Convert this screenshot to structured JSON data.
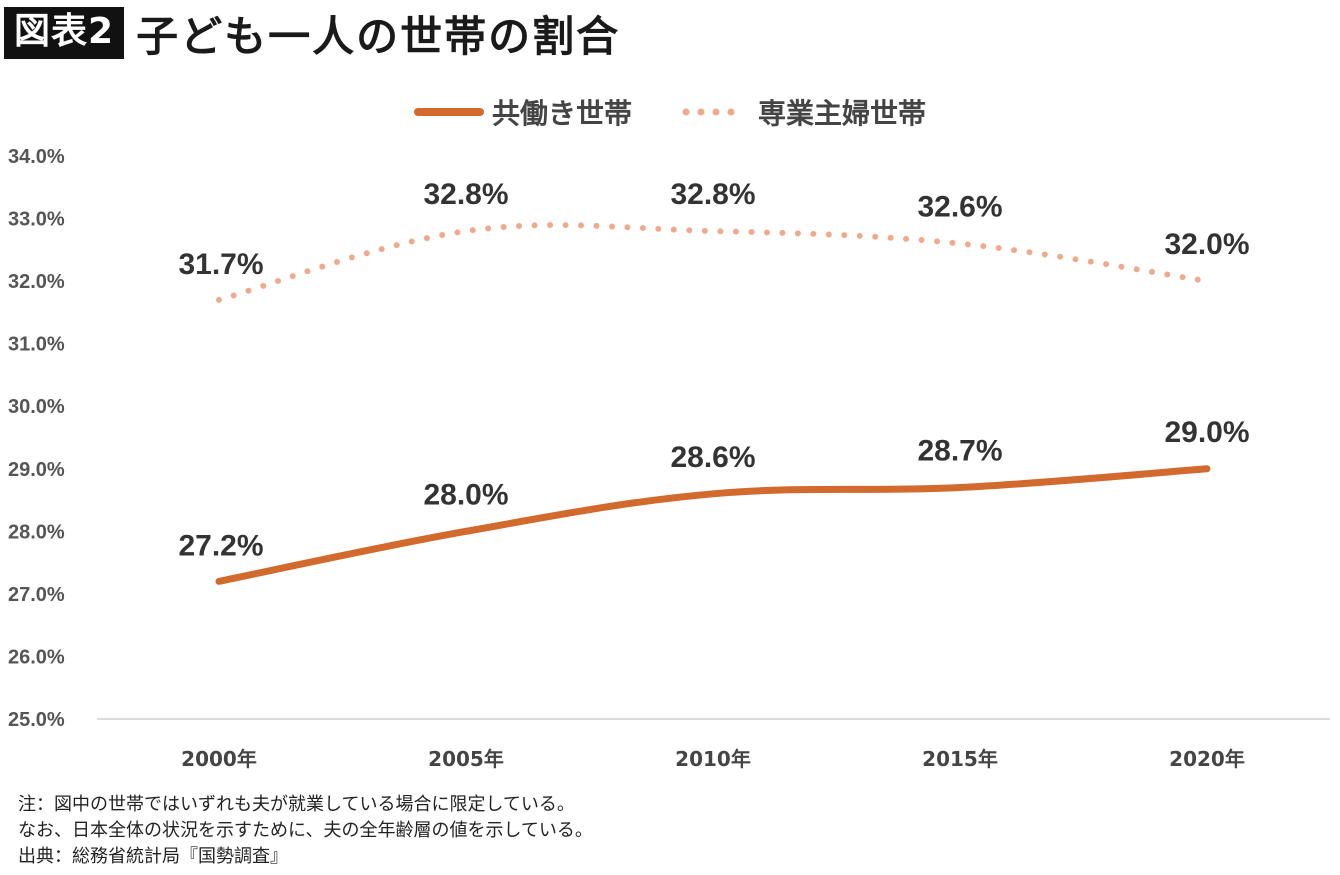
{
  "header": {
    "badge": "図表2",
    "title": "子ども一人の世帯の割合"
  },
  "legend": {
    "items": [
      {
        "label": "共働き世帯",
        "style": "solid",
        "color": "#D2692D"
      },
      {
        "label": "専業主婦世帯",
        "style": "dotted",
        "color": "#EFA98C"
      }
    ]
  },
  "chart_data": {
    "type": "line",
    "categories": [
      "2000年",
      "2005年",
      "2010年",
      "2015年",
      "2020年"
    ],
    "series": [
      {
        "name": "共働き世帯",
        "values": [
          27.2,
          28.0,
          28.6,
          28.7,
          29.0
        ],
        "labels": [
          "27.2%",
          "28.0%",
          "28.6%",
          "28.7%",
          "29.0%"
        ],
        "color": "#D2692D",
        "style": "solid"
      },
      {
        "name": "専業主婦世帯",
        "values": [
          31.7,
          32.8,
          32.8,
          32.6,
          32.0
        ],
        "labels": [
          "31.7%",
          "32.8%",
          "32.8%",
          "32.6%",
          "32.0%"
        ],
        "color": "#EFA98C",
        "style": "dotted"
      }
    ],
    "ylim": [
      25.0,
      34.0
    ],
    "yticks": [
      "25.0%",
      "26.0%",
      "27.0%",
      "28.0%",
      "29.0%",
      "30.0%",
      "31.0%",
      "32.0%",
      "33.0%",
      "34.0%"
    ],
    "grid": false,
    "legend_position": "top-center"
  },
  "notes": [
    "注：図中の世帯ではいずれも夫が就業している場合に限定している。",
    "なお、日本全体の状況を示すために、夫の全年齢層の値を示している。",
    "出典：総務省統計局『国勢調査』"
  ]
}
